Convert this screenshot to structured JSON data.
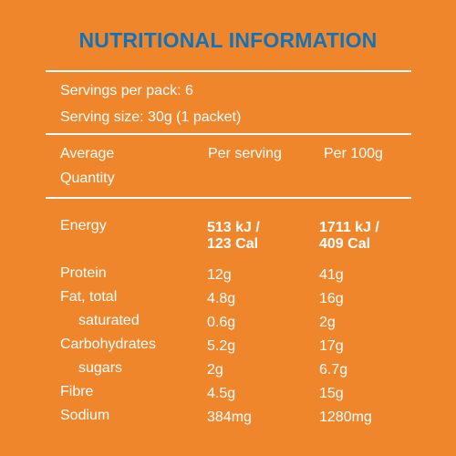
{
  "title": "NUTRITIONAL INFORMATION",
  "servings": {
    "per_pack": "Servings per pack:  6",
    "size": "Serving size:  30g (1 packet)"
  },
  "header": {
    "col1_line1": "Average",
    "col1_line2": "Quantity",
    "col2": "Per serving",
    "col3": "Per 100g"
  },
  "energy": {
    "label": "Energy",
    "per_serving_kj": "513 kJ /",
    "per_serving_cal": "123 Cal",
    "per_100g_kj": "1711 kJ /",
    "per_100g_cal": "409 Cal"
  },
  "rows": [
    {
      "label": "Protein",
      "per_serving": "12g",
      "per_100g": "41g"
    },
    {
      "label": "Fat, total",
      "per_serving": "4.8g",
      "per_100g": "16g"
    },
    {
      "label": "saturated",
      "per_serving": "0.6g",
      "per_100g": "2g"
    },
    {
      "label": "Carbohydrates",
      "per_serving": "5.2g",
      "per_100g": "17g"
    },
    {
      "label": "sugars",
      "per_serving": "2g",
      "per_100g": "6.7g"
    },
    {
      "label": "Fibre",
      "per_serving": "4.5g",
      "per_100g": "15g"
    },
    {
      "label": "Sodium",
      "per_serving": "384mg",
      "per_100g": "1280mg"
    }
  ],
  "colors": {
    "background": "#F0862C",
    "title": "#1473B8",
    "text": "#FFFFFF"
  }
}
